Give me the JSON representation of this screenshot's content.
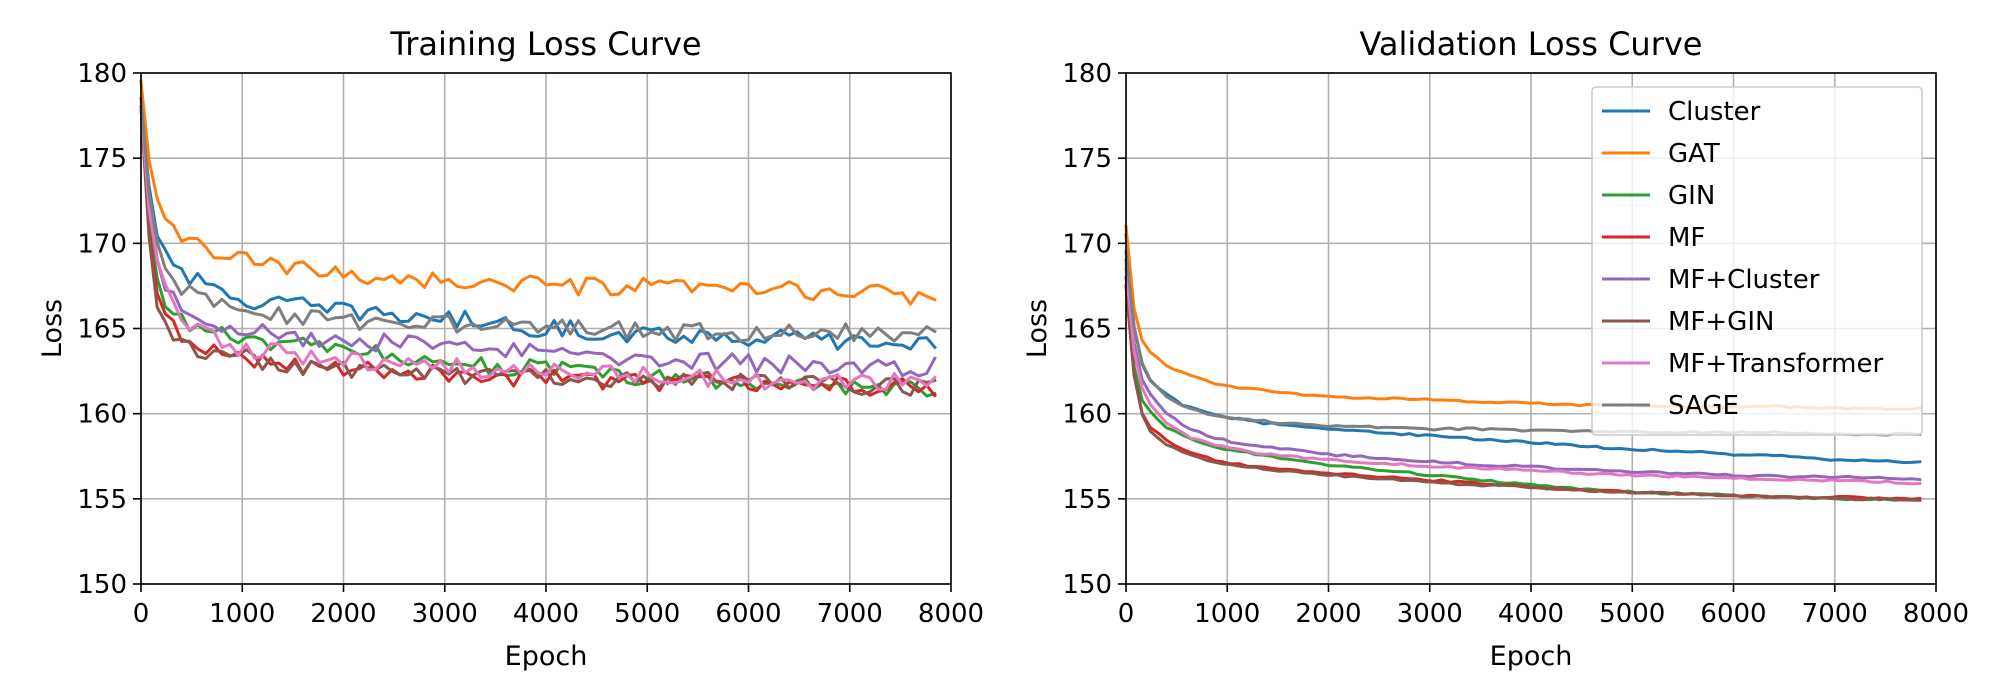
{
  "colors": {
    "Cluster": "#1f77b4",
    "GAT": "#ff7f0e",
    "GIN": "#2ca02c",
    "MF": "#d62728",
    "MF+Cluster": "#9467bd",
    "MF+GIN": "#8c564b",
    "MF+Transformer": "#e377c2",
    "SAGE": "#7f7f7f",
    "grid": "#b0b0b0",
    "axes": "#000000"
  },
  "chart_data": [
    {
      "type": "line",
      "title": "Training Loss Curve",
      "xlabel": "Epoch",
      "ylabel": "Loss",
      "xlim": [
        0,
        8000
      ],
      "ylim": [
        150,
        180
      ],
      "xticks": [
        0,
        1000,
        2000,
        3000,
        4000,
        5000,
        6000,
        7000,
        8000
      ],
      "yticks": [
        150,
        155,
        160,
        165,
        170,
        175,
        180
      ],
      "grid": true,
      "legend": null,
      "noise": "jagged",
      "series": [
        {
          "name": "Cluster",
          "x": [
            0,
            100,
            200,
            400,
            600,
            800,
            1000,
            1300,
            1600,
            2000,
            2500,
            3000,
            3500,
            4000,
            4500,
            5000,
            5500,
            6000,
            6500,
            7000,
            7500,
            7900
          ],
          "values": [
            178,
            172,
            170,
            168.5,
            167.5,
            167,
            166.7,
            166.5,
            166.3,
            166,
            165.8,
            165.6,
            165.3,
            165,
            164.8,
            164.7,
            164.6,
            164.5,
            164.4,
            164.2,
            164.1,
            164
          ]
        },
        {
          "name": "GAT",
          "x": [
            0,
            100,
            200,
            400,
            600,
            800,
            1000,
            1300,
            1600,
            2000,
            2500,
            3000,
            3500,
            4000,
            4500,
            5000,
            5500,
            6000,
            6500,
            7000,
            7500,
            7900
          ],
          "values": [
            179.5,
            173.5,
            171.2,
            170.5,
            169.8,
            169.3,
            169,
            168.7,
            168.4,
            168.2,
            168,
            167.8,
            167.6,
            167.5,
            167.4,
            167.4,
            167.3,
            167.3,
            167.2,
            167.1,
            167,
            166.9
          ]
        },
        {
          "name": "GIN",
          "x": [
            0,
            100,
            200,
            400,
            600,
            800,
            1000,
            1300,
            1600,
            2000,
            2500,
            3000,
            3500,
            4000,
            4500,
            5000,
            5500,
            6000,
            6500,
            7000,
            7500,
            7900
          ],
          "values": [
            178,
            169,
            166.8,
            165.5,
            165,
            164.6,
            164.3,
            164.2,
            163.9,
            163.7,
            163.4,
            163.1,
            162.8,
            162.6,
            162.3,
            162.1,
            161.9,
            161.8,
            161.7,
            161.6,
            161.6,
            161.5
          ]
        },
        {
          "name": "MF",
          "x": [
            0,
            100,
            200,
            400,
            600,
            800,
            1000,
            1300,
            1600,
            2000,
            2500,
            3000,
            3500,
            4000,
            4500,
            5000,
            5500,
            6000,
            6500,
            7000,
            7500,
            7900
          ],
          "values": [
            178,
            168.5,
            166,
            164.3,
            163.8,
            163.5,
            163.3,
            163.1,
            162.9,
            162.7,
            162.5,
            162.4,
            162.2,
            162.1,
            162,
            161.9,
            161.8,
            161.8,
            161.7,
            161.6,
            161.6,
            161.5
          ]
        },
        {
          "name": "MF+Cluster",
          "x": [
            0,
            100,
            200,
            400,
            600,
            800,
            1000,
            1300,
            1600,
            2000,
            2500,
            3000,
            3500,
            4000,
            4500,
            5000,
            5500,
            6000,
            6500,
            7000,
            7500,
            7900
          ],
          "values": [
            178,
            171,
            168,
            166.5,
            165.7,
            165.3,
            165,
            164.7,
            164.5,
            164.3,
            164.1,
            163.9,
            163.7,
            163.6,
            163.4,
            163.3,
            163.1,
            163,
            162.9,
            162.8,
            162.7,
            162.7
          ]
        },
        {
          "name": "MF+GIN",
          "x": [
            0,
            100,
            200,
            400,
            600,
            800,
            1000,
            1300,
            1600,
            2000,
            2500,
            3000,
            3500,
            4000,
            4500,
            5000,
            5500,
            6000,
            6500,
            7000,
            7500,
            7900
          ],
          "values": [
            178,
            168,
            165.7,
            164.1,
            163.8,
            163.5,
            163.3,
            163,
            162.8,
            162.6,
            162.4,
            162.3,
            162.2,
            162.1,
            162,
            161.9,
            161.9,
            161.8,
            161.8,
            161.7,
            161.6,
            161.5
          ]
        },
        {
          "name": "MF+Transformer",
          "x": [
            0,
            100,
            200,
            400,
            600,
            800,
            1000,
            1300,
            1600,
            2000,
            2500,
            3000,
            3500,
            4000,
            4500,
            5000,
            5500,
            6000,
            6500,
            7000,
            7500,
            7900
          ],
          "values": [
            178,
            170,
            167.5,
            165.6,
            164.7,
            164.2,
            163.9,
            163.6,
            163.4,
            163.1,
            162.9,
            162.7,
            162.6,
            162.5,
            162.4,
            162.2,
            162.1,
            162,
            161.9,
            161.9,
            161.8,
            161.8
          ]
        },
        {
          "name": "SAGE",
          "x": [
            0,
            100,
            200,
            400,
            600,
            800,
            1000,
            1300,
            1600,
            2000,
            2500,
            3000,
            3500,
            4000,
            4500,
            5000,
            5500,
            6000,
            6500,
            7000,
            7500,
            7900
          ],
          "values": [
            178.5,
            171,
            169,
            167.5,
            166.8,
            166.4,
            166.1,
            165.9,
            165.7,
            165.5,
            165.3,
            165.2,
            165.1,
            165,
            164.9,
            164.9,
            164.8,
            164.8,
            164.8,
            164.8,
            164.7,
            164.6
          ]
        }
      ]
    },
    {
      "type": "line",
      "title": "Validation Loss Curve",
      "xlabel": "Epoch",
      "ylabel": "Loss",
      "xlim": [
        0,
        8000
      ],
      "ylim": [
        150,
        180
      ],
      "xticks": [
        0,
        1000,
        2000,
        3000,
        4000,
        5000,
        6000,
        7000,
        8000
      ],
      "yticks": [
        150,
        155,
        160,
        165,
        170,
        175,
        180
      ],
      "grid": true,
      "legend": "top-right",
      "noise": "smooth",
      "series": [
        {
          "name": "Cluster",
          "x": [
            0,
            100,
            200,
            400,
            600,
            800,
            1000,
            1300,
            1600,
            2000,
            2500,
            3000,
            3500,
            4000,
            4500,
            5000,
            5500,
            6000,
            6500,
            7000,
            7500,
            7900
          ],
          "values": [
            170.5,
            163.8,
            162.2,
            161.1,
            160.4,
            160.1,
            159.8,
            159.5,
            159.3,
            159.1,
            158.9,
            158.7,
            158.5,
            158.3,
            158.1,
            157.9,
            157.8,
            157.6,
            157.5,
            157.3,
            157.2,
            157.1
          ]
        },
        {
          "name": "GAT",
          "x": [
            0,
            100,
            200,
            400,
            600,
            800,
            1000,
            1300,
            1600,
            2000,
            2500,
            3000,
            3500,
            4000,
            4500,
            5000,
            5500,
            6000,
            6500,
            7000,
            7500,
            7900
          ],
          "values": [
            171,
            165,
            163.8,
            162.8,
            162.3,
            161.9,
            161.6,
            161.4,
            161.2,
            161,
            160.9,
            160.8,
            160.7,
            160.6,
            160.5,
            160.5,
            160.4,
            160.4,
            160.4,
            160.3,
            160.3,
            160.3
          ]
        },
        {
          "name": "GIN",
          "x": [
            0,
            100,
            200,
            400,
            600,
            800,
            1000,
            1300,
            1600,
            2000,
            2500,
            3000,
            3500,
            4000,
            4500,
            5000,
            5500,
            6000,
            6500,
            7000,
            7500,
            7900
          ],
          "values": [
            168,
            161.5,
            160.3,
            159.2,
            158.6,
            158.2,
            157.9,
            157.6,
            157.3,
            157,
            156.7,
            156.4,
            156.1,
            155.8,
            155.6,
            155.4,
            155.3,
            155.2,
            155.1,
            155,
            155,
            154.9
          ]
        },
        {
          "name": "MF",
          "x": [
            0,
            100,
            200,
            400,
            600,
            800,
            1000,
            1300,
            1600,
            2000,
            2500,
            3000,
            3500,
            4000,
            4500,
            5000,
            5500,
            6000,
            6500,
            7000,
            7500,
            7900
          ],
          "values": [
            167.5,
            161,
            159.4,
            158.4,
            157.8,
            157.4,
            157.1,
            156.9,
            156.7,
            156.5,
            156.3,
            156.1,
            155.9,
            155.7,
            155.5,
            155.4,
            155.3,
            155.2,
            155.1,
            155.1,
            155,
            155
          ]
        },
        {
          "name": "MF+Cluster",
          "x": [
            0,
            100,
            200,
            400,
            600,
            800,
            1000,
            1300,
            1600,
            2000,
            2500,
            3000,
            3500,
            4000,
            4500,
            5000,
            5500,
            6000,
            6500,
            7000,
            7500,
            7900
          ],
          "values": [
            169,
            163,
            161.4,
            160,
            159.2,
            158.7,
            158.4,
            158.1,
            157.9,
            157.6,
            157.4,
            157.2,
            157,
            156.9,
            156.7,
            156.6,
            156.5,
            156.4,
            156.3,
            156.3,
            156.2,
            156.1
          ]
        },
        {
          "name": "MF+GIN",
          "x": [
            0,
            100,
            200,
            400,
            600,
            800,
            1000,
            1300,
            1600,
            2000,
            2500,
            3000,
            3500,
            4000,
            4500,
            5000,
            5500,
            6000,
            6500,
            7000,
            7500,
            7900
          ],
          "values": [
            167.5,
            161,
            159.2,
            158.2,
            157.7,
            157.3,
            157,
            156.8,
            156.6,
            156.4,
            156.2,
            156,
            155.8,
            155.7,
            155.5,
            155.4,
            155.3,
            155.2,
            155.1,
            155,
            155,
            154.9
          ]
        },
        {
          "name": "MF+Transformer",
          "x": [
            0,
            100,
            200,
            400,
            600,
            800,
            1000,
            1300,
            1600,
            2000,
            2500,
            3000,
            3500,
            4000,
            4500,
            5000,
            5500,
            6000,
            6500,
            7000,
            7500,
            7900
          ],
          "values": [
            168.5,
            162.5,
            160.8,
            159.4,
            158.7,
            158.3,
            158,
            157.7,
            157.5,
            157.3,
            157.1,
            156.9,
            156.8,
            156.7,
            156.5,
            156.4,
            156.3,
            156.2,
            156.1,
            156.1,
            156,
            155.9
          ]
        },
        {
          "name": "SAGE",
          "x": [
            0,
            100,
            200,
            400,
            600,
            800,
            1000,
            1300,
            1600,
            2000,
            2500,
            3000,
            3500,
            4000,
            4500,
            5000,
            5500,
            6000,
            6500,
            7000,
            7500,
            7900
          ],
          "values": [
            169.5,
            164,
            162.3,
            161,
            160.3,
            160,
            159.8,
            159.6,
            159.4,
            159.3,
            159.2,
            159.1,
            159.1,
            159,
            159,
            158.9,
            158.9,
            158.9,
            158.9,
            158.8,
            158.8,
            158.8
          ]
        }
      ]
    }
  ]
}
